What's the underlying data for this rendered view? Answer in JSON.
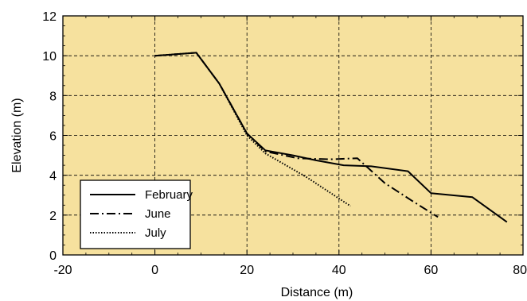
{
  "chart_data": {
    "type": "line",
    "title": "",
    "xlabel": "Distance (m)",
    "ylabel": "Elevation (m)",
    "xlim": [
      -20,
      80
    ],
    "ylim": [
      0,
      12
    ],
    "x_ticks": [
      -20,
      0,
      20,
      40,
      60,
      80
    ],
    "x_tick_labels": [
      "-20",
      "0",
      "20",
      "40",
      "60",
      "80"
    ],
    "y_ticks": [
      0,
      2,
      4,
      6,
      8,
      10,
      12
    ],
    "y_tick_labels": [
      "0",
      "2",
      "4",
      "6",
      "8",
      "10",
      "12"
    ],
    "grid": true,
    "legend": "bottom-left",
    "background_color": "#f6e19e",
    "series": [
      {
        "name": "February",
        "dash": "solid",
        "color": "#000000",
        "points": [
          [
            0,
            10
          ],
          [
            9,
            10.15
          ],
          [
            14,
            8.6
          ],
          [
            20,
            6.1
          ],
          [
            24,
            5.25
          ],
          [
            30,
            5.0
          ],
          [
            35,
            4.75
          ],
          [
            41,
            4.5
          ],
          [
            47,
            4.45
          ],
          [
            55,
            4.2
          ],
          [
            60,
            3.1
          ],
          [
            69,
            2.9
          ],
          [
            76.5,
            1.65
          ]
        ]
      },
      {
        "name": "June",
        "dash": "dashdot",
        "color": "#000000",
        "points": [
          [
            0,
            10
          ],
          [
            9,
            10.15
          ],
          [
            14,
            8.6
          ],
          [
            20,
            6.1
          ],
          [
            24,
            5.2
          ],
          [
            31,
            4.85
          ],
          [
            38,
            4.8
          ],
          [
            44,
            4.85
          ],
          [
            50,
            3.6
          ],
          [
            56,
            2.7
          ],
          [
            61.5,
            1.9
          ]
        ]
      },
      {
        "name": "July",
        "dash": "dotted",
        "color": "#000000",
        "points": [
          [
            0,
            10
          ],
          [
            9,
            10.15
          ],
          [
            14,
            8.6
          ],
          [
            20,
            6.0
          ],
          [
            24,
            5.1
          ],
          [
            33,
            3.9
          ],
          [
            42.5,
            2.45
          ]
        ]
      }
    ]
  }
}
